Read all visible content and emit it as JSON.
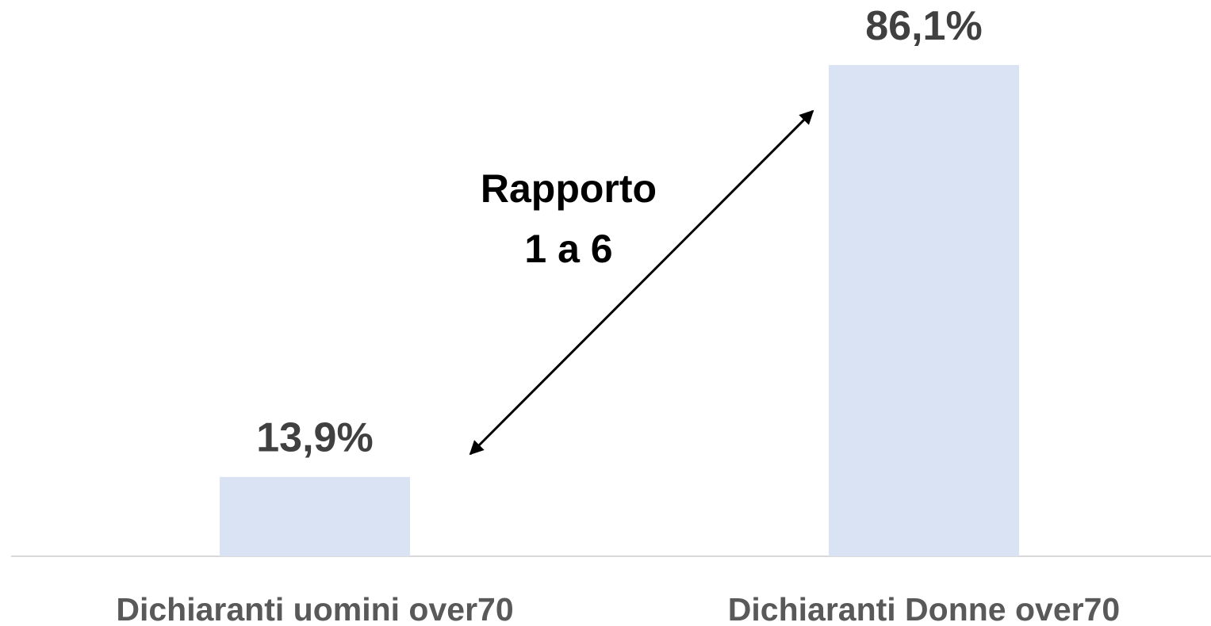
{
  "chart_data": {
    "type": "bar",
    "categories": [
      "Dichiaranti uomini over70",
      "Dichiaranti Donne over70"
    ],
    "values": [
      13.9,
      86.1
    ],
    "value_labels": [
      "13,9%",
      "86,1%"
    ],
    "color": "#dae3f3",
    "ylim": [
      0,
      100
    ],
    "annotation": [
      "Rapporto",
      "1 a 6"
    ]
  }
}
